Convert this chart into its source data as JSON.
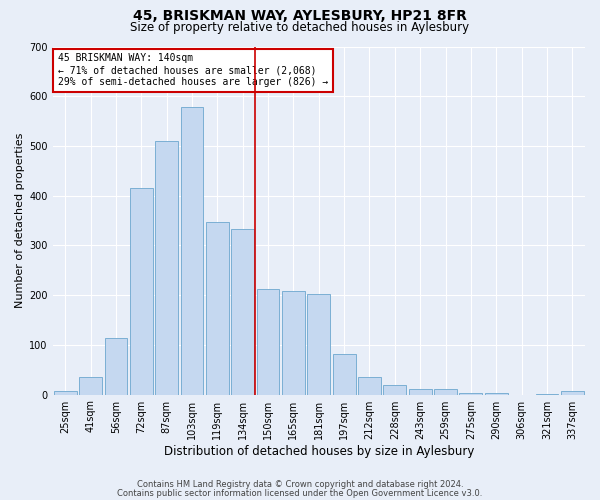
{
  "title1": "45, BRISKMAN WAY, AYLESBURY, HP21 8FR",
  "title2": "Size of property relative to detached houses in Aylesbury",
  "xlabel": "Distribution of detached houses by size in Aylesbury",
  "ylabel": "Number of detached properties",
  "categories": [
    "25sqm",
    "41sqm",
    "56sqm",
    "72sqm",
    "87sqm",
    "103sqm",
    "119sqm",
    "134sqm",
    "150sqm",
    "165sqm",
    "181sqm",
    "197sqm",
    "212sqm",
    "228sqm",
    "243sqm",
    "259sqm",
    "275sqm",
    "290sqm",
    "306sqm",
    "321sqm",
    "337sqm"
  ],
  "values": [
    8,
    35,
    113,
    415,
    510,
    578,
    347,
    333,
    212,
    208,
    203,
    82,
    35,
    20,
    12,
    12,
    3,
    3,
    0,
    2,
    7
  ],
  "bar_color": "#c5d8f0",
  "bar_edge_color": "#7bafd4",
  "vline_x_index": 7.5,
  "vline_color": "#cc0000",
  "annotation_text": "45 BRISKMAN WAY: 140sqm\n← 71% of detached houses are smaller (2,068)\n29% of semi-detached houses are larger (826) →",
  "annotation_box_color": "#ffffff",
  "annotation_box_edge_color": "#cc0000",
  "ylim": [
    0,
    700
  ],
  "yticks": [
    0,
    100,
    200,
    300,
    400,
    500,
    600,
    700
  ],
  "bg_color": "#e8eef8",
  "fig_color": "#e8eef8",
  "footer1": "Contains HM Land Registry data © Crown copyright and database right 2024.",
  "footer2": "Contains public sector information licensed under the Open Government Licence v3.0.",
  "title1_fontsize": 10,
  "title2_fontsize": 8.5,
  "ylabel_fontsize": 8,
  "xlabel_fontsize": 8.5,
  "tick_fontsize": 7,
  "footer_fontsize": 6,
  "annot_fontsize": 7
}
